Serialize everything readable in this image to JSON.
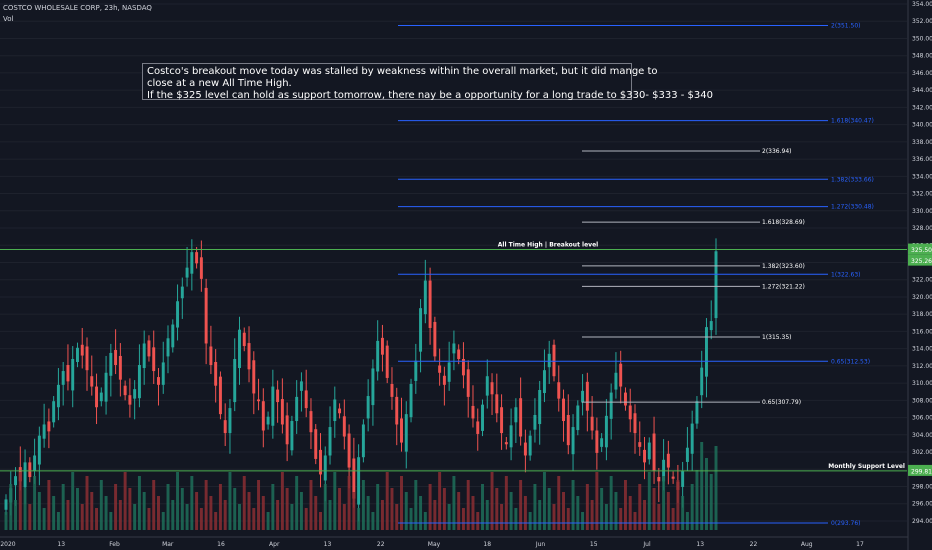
{
  "header": {
    "title": "COSTCO WHOLESALE CORP, 23h, NASDAQ",
    "vol": "Vol"
  },
  "annotation": {
    "line1": "Costco's breakout move today was stalled by weakness within the overall market, but it did mange to",
    "line2": "close at a new All Time High.",
    "line3": "If the $325 level can hold as support tomorrow, there nay be a opportunity for a long trade to $330- $333 - $340"
  },
  "colors": {
    "background": "#131722",
    "up": "#26a69a",
    "down": "#ef5350",
    "up_vol": "#1f6e59",
    "down_vol": "#8b2e32",
    "support": "#4caf50",
    "fib_blue": "#2962ff",
    "fib_white": "#b2b5be",
    "grid": "#1e222d"
  },
  "chart_data": {
    "type": "candlestick",
    "symbol": "COSTCO WHOLESALE CORP",
    "interval": "23h",
    "exchange": "NASDAQ",
    "ylim": [
      293.3,
      354
    ],
    "y_ticks": [
      294,
      296,
      298,
      300,
      302,
      304,
      306,
      308,
      310,
      312,
      314,
      316,
      318,
      320,
      322,
      324,
      326,
      328,
      330,
      332,
      334,
      336,
      338,
      340,
      342,
      344,
      346,
      348,
      350,
      352,
      354
    ],
    "x_tick_labels": [
      "2020",
      "13",
      "Feb",
      "Mar",
      "16",
      "Apr",
      "13",
      "22",
      "May",
      "18",
      "Jun",
      "15",
      "Jul",
      "13",
      "22",
      "Aug",
      "17"
    ],
    "closes": [
      296.5,
      297.8,
      299.2,
      298.6,
      300.8,
      299.1,
      301.6,
      303.9,
      305.2,
      304.4,
      307.9,
      309.8,
      311.4,
      310.2,
      312.8,
      314.1,
      313.2,
      311.5,
      309.6,
      307.2,
      308.9,
      311.2,
      313.5,
      312.1,
      310.4,
      308.6,
      307.5,
      309.3,
      312.1,
      314.6,
      313.1,
      311.4,
      309.8,
      312.4,
      315.2,
      316.8,
      319.5,
      321.2,
      323.4,
      325.2,
      323.9,
      322.1,
      314.6,
      312.1,
      309.7,
      306.4,
      304.2,
      307.1,
      312.8,
      316.2,
      314.3,
      311.6,
      308.8,
      307.9,
      304.5,
      306.1,
      309.6,
      307.8,
      305.2,
      302.9,
      305.6,
      308.4,
      310.2,
      307.1,
      304.3,
      301.2,
      299.4,
      301.6,
      304.9,
      308.1,
      306.5,
      303.8,
      300.2,
      296.6,
      301.4,
      305.2,
      308.5,
      311.7,
      314.9,
      313.3,
      310.6,
      308.4,
      305.2,
      303.1,
      306.4,
      309.9,
      312.6,
      318.7,
      321.9,
      316.4,
      313.1,
      311.2,
      309.8,
      312.4,
      314.6,
      312.8,
      310.9,
      308.4,
      305.9,
      304.1,
      307.5,
      310.8,
      308.7,
      306.5,
      304.2,
      302.9,
      305.1,
      307.2,
      303.8,
      301.6,
      303.9,
      306.3,
      309.2,
      311.5,
      313.4,
      310.8,
      308.2,
      305.6,
      302.8,
      304.9,
      307.4,
      309.1,
      306.8,
      304.5,
      301.9,
      303.6,
      306.2,
      308.9,
      311.2,
      309.6,
      307.4,
      305.8,
      304.2,
      302.6,
      300.8,
      303.1,
      299.8,
      298.6,
      301.1,
      300.2,
      298.9,
      297.6,
      299.8,
      302.5,
      305.3,
      307.9,
      311.8,
      316.5,
      317.2,
      325.3
    ],
    "fibonacci_right_labels": [
      {
        "label": "2(351.50)",
        "value": 351.5
      },
      {
        "label": "1.618(340.47)",
        "value": 340.47
      },
      {
        "label": "1.382(333.66)",
        "value": 333.66
      },
      {
        "label": "1.272(330.48)",
        "value": 330.48
      },
      {
        "label": "1(322.63)",
        "value": 322.63
      },
      {
        "label": "0.65(312.53)",
        "value": 312.53
      },
      {
        "label": "0(293.76)",
        "value": 293.76
      }
    ],
    "fibonacci_inner_labels": [
      {
        "label": "2(336.94)",
        "value": 336.94
      },
      {
        "label": "1.618(328.69)",
        "value": 328.69
      },
      {
        "label": "1.382(323.60)",
        "value": 323.6
      },
      {
        "label": "1.272(321.22)",
        "value": 321.22
      },
      {
        "label": "1(315.35)",
        "value": 315.35
      },
      {
        "label": "0.65(307.79)",
        "value": 307.79
      }
    ],
    "horizontal_levels": [
      {
        "label": "All Time High | Breakout level",
        "value": 325.5,
        "axis_tag": "325.50"
      },
      {
        "label": "Monthly Support Level",
        "value": 299.81,
        "axis_tag": "299.81"
      }
    ],
    "last_price_tag": "325.26",
    "last_price": 325.26
  }
}
